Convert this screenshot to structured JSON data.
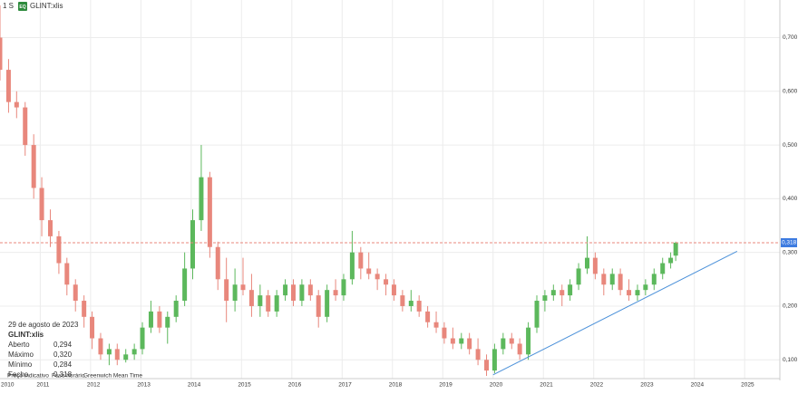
{
  "header": {
    "interval": "1 S",
    "badge": "EQ",
    "symbol": "GLINT:xlis"
  },
  "info": {
    "date": "29 de agosto de 2023",
    "symbol": "GLINT:xlis",
    "rows": [
      [
        "Aberto",
        "0,294"
      ],
      [
        "Máximo",
        "0,320"
      ],
      [
        "Mínimo",
        "0,284"
      ],
      [
        "Fecho",
        "0,318"
      ]
    ]
  },
  "footer": [
    "Preço indicativo",
    "Fuso horário",
    "Greenwich Mean Time"
  ],
  "chart_data": {
    "type": "candlestick",
    "x": [
      2010.2,
      2010.37,
      2010.53,
      2010.7,
      2010.87,
      2011.03,
      2011.2,
      2011.37,
      2011.53,
      2011.7,
      2011.87,
      2012.03,
      2012.2,
      2012.37,
      2012.53,
      2012.7,
      2012.87,
      2013.03,
      2013.2,
      2013.37,
      2013.53,
      2013.7,
      2013.87,
      2014.03,
      2014.2,
      2014.37,
      2014.53,
      2014.7,
      2014.87,
      2015.03,
      2015.2,
      2015.37,
      2015.53,
      2015.7,
      2015.87,
      2016.03,
      2016.2,
      2016.37,
      2016.53,
      2016.7,
      2016.87,
      2017.03,
      2017.2,
      2017.37,
      2017.53,
      2017.7,
      2017.87,
      2018.03,
      2018.2,
      2018.37,
      2018.53,
      2018.7,
      2018.87,
      2019.03,
      2019.2,
      2019.37,
      2019.53,
      2019.7,
      2019.87,
      2020.03,
      2020.2,
      2020.37,
      2020.53,
      2020.7,
      2020.87,
      2021.03,
      2021.2,
      2021.37,
      2021.53,
      2021.7,
      2021.87,
      2022.03,
      2022.2,
      2022.37,
      2022.53,
      2022.7,
      2022.87,
      2023.03,
      2023.2,
      2023.37,
      2023.53,
      2023.63
    ],
    "open": [
      0.7,
      0.64,
      0.58,
      0.57,
      0.5,
      0.42,
      0.36,
      0.33,
      0.28,
      0.24,
      0.21,
      0.18,
      0.14,
      0.11,
      0.12,
      0.1,
      0.11,
      0.12,
      0.16,
      0.19,
      0.16,
      0.18,
      0.21,
      0.27,
      0.36,
      0.44,
      0.31,
      0.25,
      0.21,
      0.24,
      0.23,
      0.2,
      0.22,
      0.19,
      0.22,
      0.24,
      0.21,
      0.24,
      0.22,
      0.18,
      0.23,
      0.22,
      0.25,
      0.3,
      0.27,
      0.26,
      0.25,
      0.24,
      0.22,
      0.2,
      0.21,
      0.19,
      0.17,
      0.16,
      0.14,
      0.13,
      0.14,
      0.12,
      0.1,
      0.08,
      0.12,
      0.14,
      0.13,
      0.11,
      0.16,
      0.21,
      0.22,
      0.23,
      0.22,
      0.24,
      0.27,
      0.29,
      0.26,
      0.24,
      0.26,
      0.23,
      0.22,
      0.23,
      0.24,
      0.26,
      0.28,
      0.294
    ],
    "high": [
      0.76,
      0.66,
      0.6,
      0.58,
      0.52,
      0.44,
      0.38,
      0.34,
      0.29,
      0.25,
      0.22,
      0.19,
      0.15,
      0.13,
      0.13,
      0.12,
      0.13,
      0.17,
      0.21,
      0.2,
      0.19,
      0.22,
      0.3,
      0.38,
      0.5,
      0.45,
      0.32,
      0.29,
      0.27,
      0.29,
      0.26,
      0.24,
      0.23,
      0.23,
      0.25,
      0.25,
      0.25,
      0.25,
      0.23,
      0.24,
      0.25,
      0.26,
      0.34,
      0.31,
      0.3,
      0.27,
      0.26,
      0.25,
      0.23,
      0.23,
      0.22,
      0.2,
      0.19,
      0.17,
      0.16,
      0.15,
      0.15,
      0.14,
      0.11,
      0.13,
      0.15,
      0.15,
      0.14,
      0.17,
      0.22,
      0.23,
      0.24,
      0.24,
      0.25,
      0.28,
      0.33,
      0.3,
      0.27,
      0.27,
      0.27,
      0.25,
      0.24,
      0.25,
      0.27,
      0.29,
      0.3,
      0.32
    ],
    "low": [
      0.62,
      0.56,
      0.55,
      0.48,
      0.4,
      0.33,
      0.31,
      0.26,
      0.22,
      0.19,
      0.16,
      0.12,
      0.1,
      0.09,
      0.09,
      0.095,
      0.1,
      0.11,
      0.15,
      0.15,
      0.13,
      0.17,
      0.2,
      0.25,
      0.34,
      0.29,
      0.23,
      0.17,
      0.19,
      0.22,
      0.18,
      0.18,
      0.18,
      0.18,
      0.21,
      0.2,
      0.2,
      0.21,
      0.16,
      0.17,
      0.21,
      0.21,
      0.24,
      0.25,
      0.25,
      0.23,
      0.22,
      0.21,
      0.19,
      0.19,
      0.18,
      0.16,
      0.15,
      0.13,
      0.12,
      0.12,
      0.11,
      0.09,
      0.07,
      0.075,
      0.11,
      0.12,
      0.1,
      0.1,
      0.15,
      0.19,
      0.21,
      0.2,
      0.21,
      0.23,
      0.26,
      0.25,
      0.22,
      0.23,
      0.22,
      0.21,
      0.21,
      0.22,
      0.23,
      0.25,
      0.27,
      0.284
    ],
    "close": [
      0.64,
      0.58,
      0.57,
      0.5,
      0.42,
      0.36,
      0.33,
      0.28,
      0.24,
      0.21,
      0.18,
      0.14,
      0.11,
      0.12,
      0.1,
      0.11,
      0.12,
      0.16,
      0.19,
      0.16,
      0.18,
      0.21,
      0.27,
      0.36,
      0.44,
      0.31,
      0.25,
      0.21,
      0.24,
      0.23,
      0.2,
      0.22,
      0.19,
      0.22,
      0.24,
      0.21,
      0.24,
      0.22,
      0.18,
      0.23,
      0.22,
      0.25,
      0.3,
      0.27,
      0.26,
      0.25,
      0.24,
      0.22,
      0.2,
      0.21,
      0.19,
      0.17,
      0.16,
      0.14,
      0.13,
      0.14,
      0.12,
      0.1,
      0.08,
      0.12,
      0.14,
      0.13,
      0.11,
      0.16,
      0.21,
      0.22,
      0.23,
      0.22,
      0.24,
      0.27,
      0.29,
      0.26,
      0.24,
      0.26,
      0.23,
      0.22,
      0.23,
      0.24,
      0.26,
      0.28,
      0.29,
      0.318
    ],
    "up_color": "#5cb85c",
    "down_color": "#e8877c",
    "xlim": [
      2010.2,
      2025.7
    ],
    "ylim": [
      0.065,
      0.77
    ],
    "xticks": [
      2010,
      2011,
      2012,
      2013,
      2014,
      2015,
      2016,
      2017,
      2018,
      2019,
      2020,
      2021,
      2022,
      2023,
      2024,
      2025
    ],
    "yticks": [
      {
        "value": 0.1,
        "label": "0,100"
      },
      {
        "value": 0.2,
        "label": "0,200"
      },
      {
        "value": 0.3,
        "label": "0,300"
      },
      {
        "value": 0.4,
        "label": "0,400"
      },
      {
        "value": 0.5,
        "label": "0,500"
      },
      {
        "value": 0.6,
        "label": "0,600"
      },
      {
        "value": 0.7,
        "label": "0,700"
      }
    ],
    "grid": true,
    "last_price": {
      "value": 0.318,
      "label": "0,318",
      "color": "#3d7be0",
      "line_color": "#e8877c"
    },
    "trendline": {
      "x": [
        2020.0,
        2024.85
      ],
      "y": [
        0.072,
        0.302
      ],
      "color": "#4a90d9"
    }
  }
}
